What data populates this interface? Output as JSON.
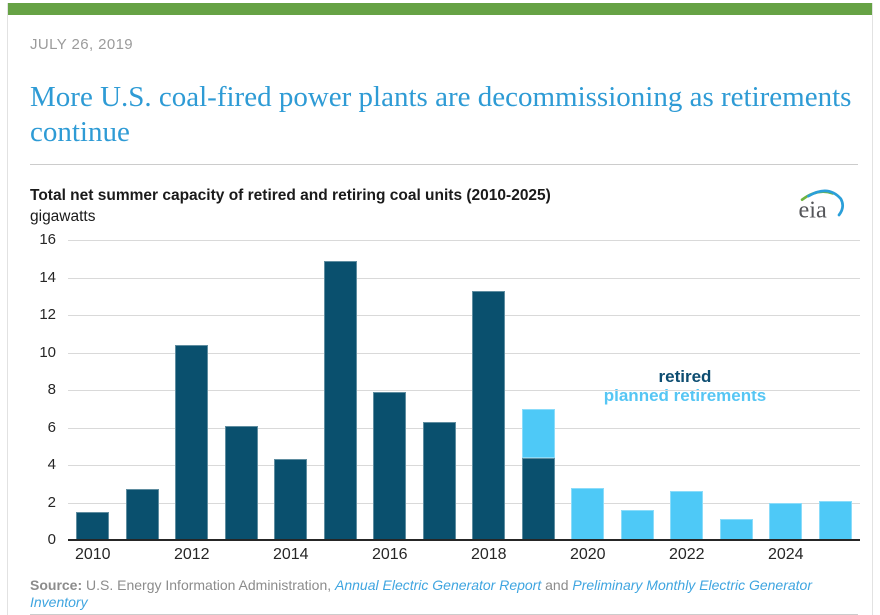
{
  "page": {
    "date": "JULY 26, 2019",
    "title": "More U.S. coal-fired power plants are decommissioning as retirements continue"
  },
  "chart": {
    "title": "Total net summer capacity of retired and retiring coal units (2010-2025)",
    "unit_label": "gigawatts"
  },
  "logo": {
    "text": "eia"
  },
  "source": {
    "prefix": "Source: ",
    "text1": "U.S. Energy Information Administration, ",
    "link1": "Annual Electric Generator Report",
    "text2": " and ",
    "link2": "Preliminary Monthly Electric Generator Inventory"
  },
  "colors": {
    "top_bar_green": "#66a245",
    "title_blue": "#2e9bd5",
    "date_gray": "#9b9b9b",
    "bar_dark": "#0a506e",
    "bar_light": "#4ec9f7",
    "legend_dark": "#0d4d71",
    "legend_light": "#56c6f4",
    "link_blue": "#3fa5e0",
    "source_gray": "#8c8c8c",
    "axis_dark": "#262626",
    "grid_gray": "#d9d9d9",
    "rule_gray": "#cccccc",
    "card_border": "#e2e2e2",
    "chart_text": "#1a1a1a"
  },
  "chart_data": {
    "type": "bar",
    "stacked": true,
    "title": "Total net summer capacity of retired and retiring coal units (2010-2025)",
    "ylabel": "gigawatts",
    "ylim": [
      0,
      16
    ],
    "y_ticks": [
      0,
      2,
      4,
      6,
      8,
      10,
      12,
      14,
      16
    ],
    "grid": "horizontal",
    "legend_position": "inside-right",
    "categories": [
      2010,
      2011,
      2012,
      2013,
      2014,
      2015,
      2016,
      2017,
      2018,
      2019,
      2020,
      2021,
      2022,
      2023,
      2024,
      2025
    ],
    "x_tick_labels": [
      "2010",
      "2012",
      "2014",
      "2016",
      "2018",
      "2020",
      "2022",
      "2024"
    ],
    "series": [
      {
        "name": "retired",
        "color": "#0a506e",
        "values": [
          1.5,
          2.7,
          10.4,
          6.1,
          4.3,
          14.9,
          7.9,
          6.3,
          13.3,
          4.4,
          0,
          0,
          0,
          0,
          0,
          0
        ]
      },
      {
        "name": "planned retirements",
        "color": "#4ec9f7",
        "values": [
          0,
          0,
          0,
          0,
          0,
          0,
          0,
          0,
          0,
          2.6,
          2.8,
          1.6,
          2.6,
          1.1,
          2.0,
          2.1
        ]
      }
    ]
  }
}
